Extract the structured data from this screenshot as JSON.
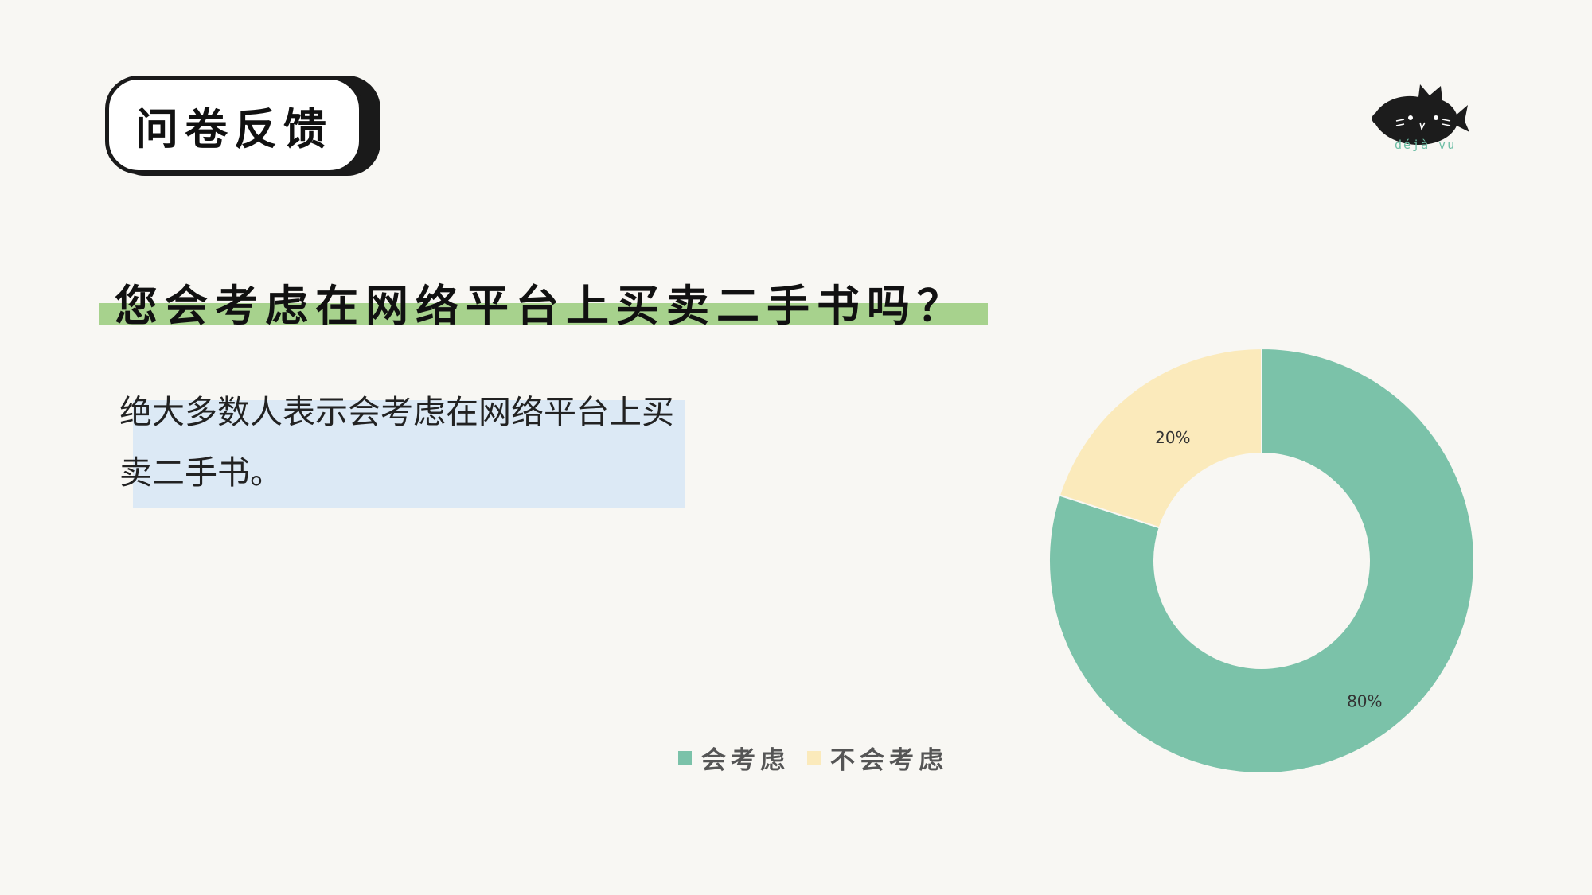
{
  "badge": {
    "title": "问卷反馈"
  },
  "logo": {
    "caption": "déjà vu"
  },
  "question": "您会考虑在网络平台上买卖二手书吗？",
  "answer": "绝大多数人表示会考虑在网络平台上买卖二手书。",
  "colors": {
    "background": "#f8f7f3",
    "highlight_green": "#a7d28d",
    "answer_box": "#dce9f5",
    "series_yes": "#7bc2a9",
    "series_no": "#fbeabb"
  },
  "chart_data": {
    "type": "pie",
    "donut": true,
    "categories": [
      "会考虑",
      "不会考虑"
    ],
    "values": [
      80,
      20
    ],
    "data_labels": [
      "80%",
      "20%"
    ],
    "colors": [
      "#7bc2a9",
      "#fbeabb"
    ],
    "legend": "bottom",
    "title": ""
  }
}
